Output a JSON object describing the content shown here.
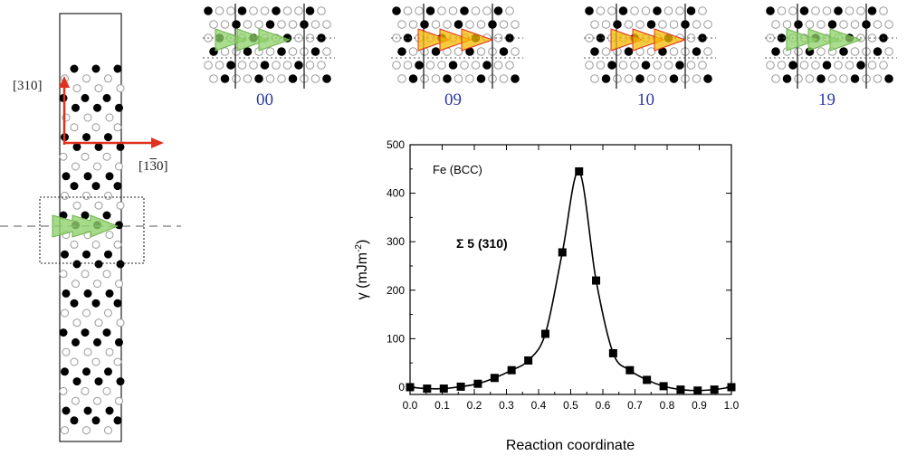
{
  "slab": {
    "dir_vertical": "[310]",
    "dir_horizontal_prefix": "[1",
    "dir_horizontal_bar": "3",
    "dir_horizontal_suffix": "0]"
  },
  "snapshots": [
    {
      "label": "00",
      "state": "start"
    },
    {
      "label": "09",
      "state": "transition"
    },
    {
      "label": "10",
      "state": "transition"
    },
    {
      "label": "19",
      "state": "end"
    }
  ],
  "colors": {
    "axis_arrow": "#e0301e",
    "glide_start": "#8fd16a",
    "glide_transition": "#f5b800",
    "atom_dark": "#000000",
    "atom_light_stroke": "#9a9a9a",
    "snapshot_label": "#2b3aa8"
  },
  "chart_data": {
    "type": "line",
    "annotation_material": "Fe (BCC)",
    "annotation_gb": "Σ 5 (310)",
    "xlabel": "Reaction coordinate",
    "ylabel_symbol": "γ",
    "ylabel_unit": "(mJm",
    "ylabel_exp": "-2",
    "ylabel_close": ")",
    "xlim": [
      0.0,
      1.0
    ],
    "ylim": [
      -15,
      500
    ],
    "xticks": [
      "0.0",
      "0.1",
      "0.2",
      "0.3",
      "0.4",
      "0.5",
      "0.6",
      "0.7",
      "0.8",
      "0.9",
      "1.0"
    ],
    "yticks": [
      "0",
      "100",
      "200",
      "300",
      "400",
      "500"
    ],
    "marker": "square",
    "x": [
      0.0,
      0.053,
      0.105,
      0.158,
      0.211,
      0.263,
      0.316,
      0.368,
      0.421,
      0.474,
      0.526,
      0.579,
      0.632,
      0.684,
      0.737,
      0.789,
      0.842,
      0.895,
      0.947,
      1.0
    ],
    "y": [
      0,
      -3,
      -3,
      1,
      7,
      19,
      35,
      55,
      110,
      278,
      445,
      220,
      70,
      35,
      15,
      2,
      -5,
      -7,
      -5,
      0
    ]
  }
}
